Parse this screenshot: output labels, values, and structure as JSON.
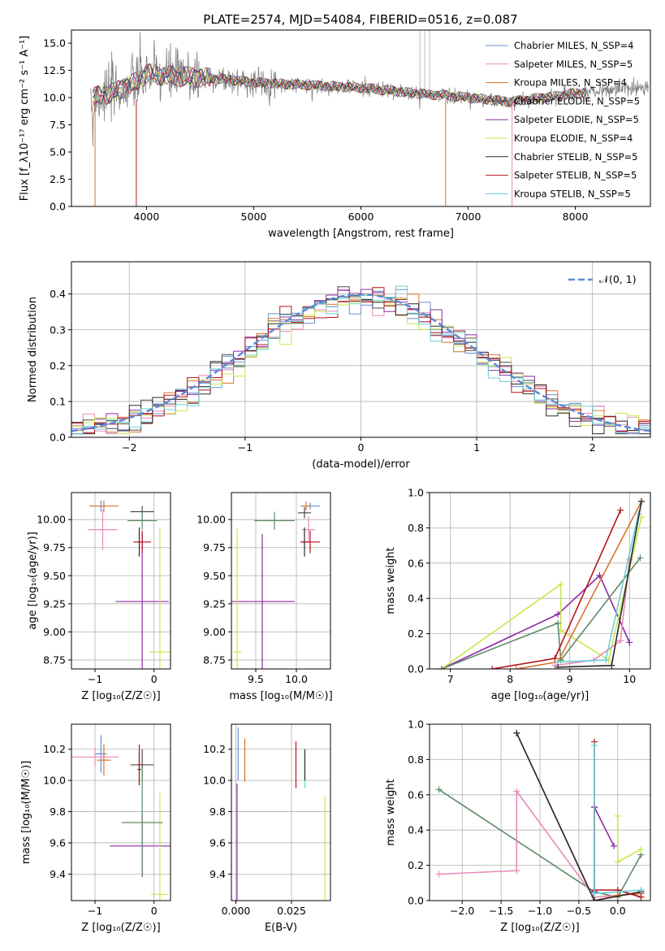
{
  "figure": {
    "title": "PLATE=2574, MJD=54084, FIBERID=0516, z=0.087"
  },
  "colors": {
    "series": [
      "#6a8fd6",
      "#e889b8",
      "#d9742a",
      "#4a4a4a",
      "#8e2aa6",
      "#c9e84a",
      "#2a2a2a",
      "#b3141c",
      "#6ad0d6"
    ],
    "spectrum": "#808080",
    "normal_curve": "#5b8ad6",
    "extra": [
      "#5f8a66",
      "#e889b8"
    ],
    "grid": "#b0b0b0"
  },
  "chart_data": [
    {
      "id": "spectrum",
      "type": "line",
      "title": "PLATE=2574, MJD=54084, FIBERID=0516, z=0.087",
      "xlabel": "wavelength [Angstrom, rest frame]",
      "ylabel": "Flux [f_λ10⁻¹⁷ erg cm⁻² s⁻¹ A⁻¹]",
      "xlim": [
        3300,
        8700
      ],
      "ylim": [
        0,
        16.2
      ],
      "xticks": [
        4000,
        5000,
        6000,
        7000,
        8000
      ],
      "yticks": [
        0.0,
        2.5,
        5.0,
        7.5,
        10.0,
        12.5,
        15.0
      ],
      "grid": false,
      "legend_position": "top-right",
      "legend": [
        {
          "name": "Chabrier MILES, N_SSP=4"
        },
        {
          "name": "Salpeter MILES, N_SSP=5"
        },
        {
          "name": "Kroupa MILES, N_SSP=4"
        },
        {
          "name": "Chabrier ELODIE, N_SSP=5"
        },
        {
          "name": "Salpeter ELODIE, N_SSP=5"
        },
        {
          "name": "Kroupa ELODIE, N_SSP=4"
        },
        {
          "name": "Chabrier STELIB, N_SSP=5"
        },
        {
          "name": "Salpeter STELIB, N_SSP=5"
        },
        {
          "name": "Kroupa STELIB, N_SSP=5"
        }
      ],
      "continuum": {
        "x": [
          3500,
          3700,
          3900,
          4000,
          4200,
          4400,
          4600,
          4800,
          5000,
          5200,
          5400,
          5600,
          5800,
          6000,
          6200,
          6400,
          6600,
          6800,
          7000,
          7200,
          7400,
          7600,
          7800,
          8000,
          8200,
          8400,
          8600
        ],
        "y": [
          10.0,
          10.5,
          11.4,
          12.2,
          12.0,
          11.9,
          11.8,
          11.6,
          11.4,
          11.3,
          11.2,
          11.1,
          11.0,
          10.9,
          10.7,
          10.5,
          10.3,
          10.2,
          10.0,
          9.8,
          9.6,
          9.9,
          10.1,
          10.4,
          10.6,
          10.8,
          11.0
        ]
      }
    },
    {
      "id": "residuals",
      "type": "histogram",
      "xlabel": "(data-model)/error",
      "ylabel": "Normed distribution",
      "xlim": [
        -2.5,
        2.5
      ],
      "ylim": [
        0,
        0.49
      ],
      "xticks": [
        -2,
        -1,
        0,
        1,
        2
      ],
      "yticks": [
        0.0,
        0.1,
        0.2,
        0.3,
        0.4
      ],
      "grid": true,
      "legend_position": "top-right",
      "legend": [
        {
          "name": "𝒩(0, 1)"
        }
      ],
      "bins": [
        -2.5,
        2.5,
        50
      ]
    },
    {
      "id": "age-vs-Z",
      "type": "scatter",
      "xlabel": "Z [log₁₀(Z/Z☉)]",
      "ylabel": "age  [log₁₀(age/yr)]",
      "xlim": [
        -1.4,
        0.28
      ],
      "ylim": [
        8.67,
        10.24
      ],
      "xticks": [
        -1,
        0
      ],
      "yticks": [
        8.75,
        9.0,
        9.25,
        9.5,
        9.75,
        10.0
      ],
      "grid": true,
      "points": [
        {
          "x": -0.9,
          "y": 10.12,
          "xerr": 0.08,
          "yerr": 0.05,
          "series": 0
        },
        {
          "x": -0.87,
          "y": 9.91,
          "xerr": 0.25,
          "yerr": 0.18,
          "series": 1
        },
        {
          "x": -0.85,
          "y": 10.12,
          "xerr": 0.25,
          "yerr": 0.05,
          "series": 2
        },
        {
          "x": -0.2,
          "y": 10.07,
          "xerr": 0.2,
          "yerr": 0.05,
          "series": 3
        },
        {
          "x": -0.2,
          "y": 9.27,
          "xerr": 0.45,
          "yerr": 0.6,
          "series": 4
        },
        {
          "x": 0.1,
          "y": 8.82,
          "xerr": 0.18,
          "yerr": 1.1,
          "series": 5
        },
        {
          "x": -0.25,
          "y": 9.8,
          "xerr": 0.03,
          "yerr": 0.13,
          "series": 6
        },
        {
          "x": -0.2,
          "y": 9.8,
          "xerr": 0.15,
          "yerr": 0.1,
          "series": 7
        },
        {
          "x": -0.2,
          "y": 9.99,
          "xerr": 0.25,
          "yerr": 0.08,
          "series": 9
        }
      ]
    },
    {
      "id": "age-vs-mass",
      "type": "scatter",
      "xlabel": "mass [log₁₀(M/M☉)]",
      "ylabel": "",
      "xlim": [
        9.2,
        10.42
      ],
      "ylim": [
        8.67,
        10.24
      ],
      "xticks": [
        9.5,
        10.0
      ],
      "yticks": [
        8.75,
        9.0,
        9.25,
        9.5,
        9.75,
        10.0
      ],
      "grid": true,
      "points": [
        {
          "x": 10.17,
          "y": 10.12,
          "xerr": 0.12,
          "yerr": 0.03,
          "series": 0
        },
        {
          "x": 10.15,
          "y": 9.91,
          "xerr": 0.08,
          "yerr": 0.12,
          "series": 1
        },
        {
          "x": 10.12,
          "y": 10.12,
          "xerr": 0.05,
          "yerr": 0.04,
          "series": 2
        },
        {
          "x": 10.1,
          "y": 10.06,
          "xerr": 0.08,
          "yerr": 0.05,
          "series": 3
        },
        {
          "x": 9.58,
          "y": 9.27,
          "xerr": 0.4,
          "yerr": 0.6,
          "series": 4
        },
        {
          "x": 9.27,
          "y": 8.82,
          "xerr": 0.05,
          "yerr": 1.1,
          "series": 5
        },
        {
          "x": 10.1,
          "y": 9.8,
          "xerr": 0.03,
          "yerr": 0.13,
          "series": 6
        },
        {
          "x": 10.17,
          "y": 9.8,
          "xerr": 0.12,
          "yerr": 0.1,
          "series": 7
        },
        {
          "x": 9.73,
          "y": 9.99,
          "xerr": 0.25,
          "yerr": 0.08,
          "series": 9
        }
      ]
    },
    {
      "id": "weight-vs-age",
      "type": "line",
      "xlabel": "age  [log₁₀(age/yr)]",
      "ylabel": "mass weight",
      "xlim": [
        6.65,
        10.35
      ],
      "ylim": [
        0,
        1.0
      ],
      "xticks": [
        7,
        8,
        9,
        10
      ],
      "yticks": [
        0.0,
        0.2,
        0.4,
        0.6,
        0.8,
        1.0
      ],
      "grid": true
    },
    {
      "id": "mass-vs-Z",
      "type": "scatter",
      "xlabel": "Z [log₁₀(Z/Z☉)]",
      "ylabel": "mass [log₁₀(M/M☉)]",
      "xlim": [
        -1.4,
        0.28
      ],
      "ylim": [
        9.23,
        10.36
      ],
      "xticks": [
        -1,
        0
      ],
      "yticks": [
        9.4,
        9.6,
        9.8,
        10.0,
        10.2
      ],
      "grid": true,
      "points": [
        {
          "x": -0.9,
          "y": 10.17,
          "xerr": 0.1,
          "yerr": 0.12,
          "series": 0
        },
        {
          "x": -1.0,
          "y": 10.15,
          "xerr": 0.4,
          "yerr": 0.06,
          "series": 1
        },
        {
          "x": -0.85,
          "y": 10.13,
          "xerr": 0.12,
          "yerr": 0.1,
          "series": 2
        },
        {
          "x": -0.2,
          "y": 10.1,
          "xerr": 0.2,
          "yerr": 0.1,
          "series": 3
        },
        {
          "x": -0.2,
          "y": 9.58,
          "xerr": 0.55,
          "yerr": 0.2,
          "series": 4
        },
        {
          "x": 0.1,
          "y": 9.27,
          "xerr": 0.15,
          "yerr": 0.65,
          "series": 5
        },
        {
          "x": -0.25,
          "y": 10.07,
          "xerr": 0.03,
          "yerr": 0.1,
          "series": 6
        },
        {
          "x": -0.25,
          "y": 10.1,
          "xerr": 0.03,
          "yerr": 0.13,
          "series": 7
        },
        {
          "x": -0.2,
          "y": 9.73,
          "xerr": 0.35,
          "yerr": 0.35,
          "series": 9
        }
      ]
    },
    {
      "id": "mass-vs-ebv",
      "type": "scatter",
      "xlabel": "E(B-V)",
      "ylabel": "",
      "xlim": [
        -0.002,
        0.0425
      ],
      "ylim": [
        9.23,
        10.36
      ],
      "xticks": [
        0.0,
        0.025
      ],
      "yticks": [
        9.4,
        9.6,
        9.8,
        10.0,
        10.2
      ],
      "grid": true,
      "points": [
        {
          "x": 0.001,
          "y": 10.17,
          "xerr": 0,
          "yerr": 0.17,
          "series": 0
        },
        {
          "x": 0.0005,
          "y": 9.58,
          "xerr": 0,
          "yerr": 0.4,
          "series": 4
        },
        {
          "x": 0.004,
          "y": 10.13,
          "xerr": 0,
          "yerr": 0.14,
          "series": 2
        },
        {
          "x": 0.027,
          "y": 10.1,
          "xerr": 0,
          "yerr": 0.15,
          "series": 7
        },
        {
          "x": 0.031,
          "y": 10.07,
          "xerr": 0,
          "yerr": 0.12,
          "series": 8
        },
        {
          "x": 0.031,
          "y": 10.1,
          "xerr": 0,
          "yerr": 0.1,
          "series": 6
        },
        {
          "x": 0.04,
          "y": 9.5,
          "xerr": 0,
          "yerr": 0.4,
          "series": 5
        }
      ]
    },
    {
      "id": "weight-vs-Z",
      "type": "line",
      "xlabel": "Z [log₁₀(Z/Z☉)]",
      "ylabel": "mass weight",
      "xlim": [
        -2.42,
        0.42
      ],
      "ylim": [
        0,
        1.0
      ],
      "xticks": [
        -2.0,
        -1.5,
        -1.0,
        -0.5,
        0.0
      ],
      "yticks": [
        0.0,
        0.2,
        0.4,
        0.6,
        0.8,
        1.0
      ],
      "grid": true
    }
  ]
}
